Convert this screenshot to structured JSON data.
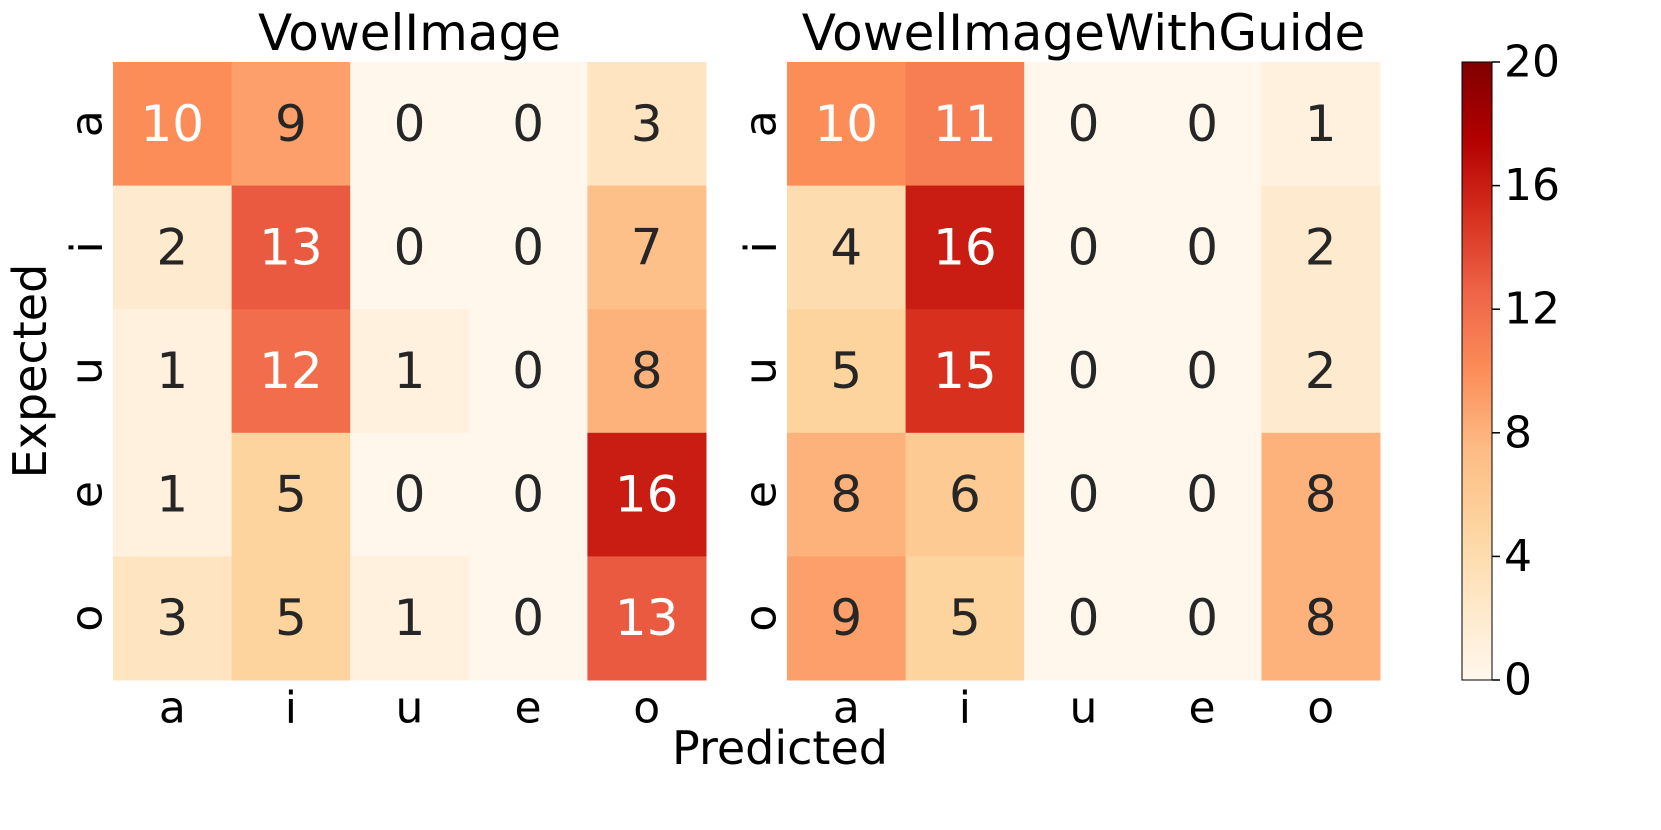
{
  "chart_data": {
    "type": "heatmap",
    "xlabel": "Predicted",
    "ylabel": "Expected",
    "x_categories": [
      "a",
      "i",
      "u",
      "e",
      "o"
    ],
    "y_categories": [
      "a",
      "i",
      "u",
      "e",
      "o"
    ],
    "zlim": [
      0,
      20
    ],
    "zticks": [
      0,
      4,
      8,
      12,
      16,
      20
    ],
    "colors": [
      "#fff7ec",
      "#fee8c8",
      "#fdd49e",
      "#fdbb84",
      "#fc8d59",
      "#ef6548",
      "#d7301f",
      "#b30000",
      "#7f0000"
    ],
    "panels": [
      {
        "title": "VowelImage",
        "values": [
          [
            10,
            9,
            0,
            0,
            3
          ],
          [
            2,
            13,
            0,
            0,
            7
          ],
          [
            1,
            12,
            1,
            0,
            8
          ],
          [
            1,
            5,
            0,
            0,
            16
          ],
          [
            3,
            5,
            1,
            0,
            13
          ]
        ]
      },
      {
        "title": "VowelImageWithGuide",
        "values": [
          [
            10,
            11,
            0,
            0,
            1
          ],
          [
            4,
            16,
            0,
            0,
            2
          ],
          [
            5,
            15,
            0,
            0,
            2
          ],
          [
            8,
            6,
            0,
            0,
            8
          ],
          [
            9,
            5,
            0,
            0,
            8
          ]
        ]
      }
    ]
  }
}
